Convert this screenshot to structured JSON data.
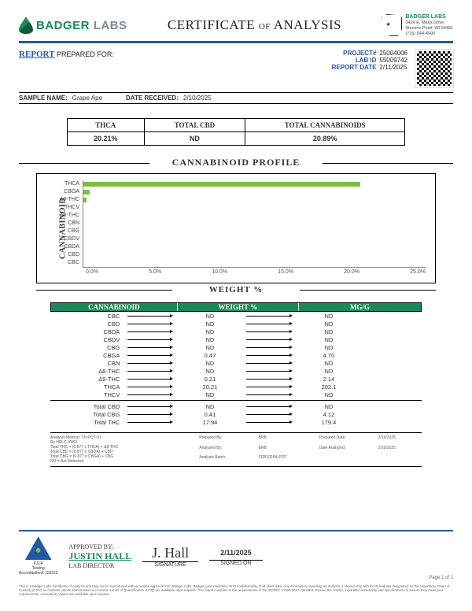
{
  "brand": {
    "name1": "BADGER",
    "name2": "LABS",
    "addr_name": "BADGER LABS",
    "addr1": "3426 E. Maria Drive",
    "addr2": "Stevens Point, WI 54481",
    "addr3": "(715) 544-4900"
  },
  "title": {
    "cert": "CERTIFICATE",
    "of": "OF",
    "analysis": "ANALYSIS"
  },
  "report": {
    "label": "REPORT",
    "prepared": "PREPARED FOR:"
  },
  "meta": {
    "project_k": "PROJECT#",
    "project_v": "25004006",
    "labid_k": "LAB ID",
    "labid_v": "55009742",
    "date_k": "REPORT DATE",
    "date_v": "2/11/2025"
  },
  "sample": {
    "name_k": "SAMPLE NAME:",
    "name_v": "Grape Ape",
    "recv_k": "DATE RECEIVED:",
    "recv_v": "2/10/2025"
  },
  "summary": {
    "h1": "THCA",
    "h2": "TOTAL CBD",
    "h3": "TOTAL CANNABINOIDS",
    "v1": "20.21%",
    "v2": "ND",
    "v3": "20.89%"
  },
  "profile": {
    "title": "CANNABINOID PROFILE",
    "ylab": "CANNABINOID",
    "xlab": "WEIGHT %"
  },
  "chart": {
    "xmax": 25.0,
    "ticks": [
      "0.0%",
      "5.0%",
      "10.0%",
      "15.0%",
      "20.0%",
      "25.0%"
    ],
    "bar_color": "#7bbf3f",
    "rows": [
      {
        "label": "THCA",
        "value": 20.21
      },
      {
        "label": "CBGA",
        "value": 0.47
      },
      {
        "label": "Δ9-THC",
        "value": 0.21
      },
      {
        "label": "THCV",
        "value": 0
      },
      {
        "label": "Δ8-THC",
        "value": 0
      },
      {
        "label": "CBN",
        "value": 0
      },
      {
        "label": "CBG",
        "value": 0
      },
      {
        "label": "CBDV",
        "value": 0
      },
      {
        "label": "CBDA",
        "value": 0
      },
      {
        "label": "CBD",
        "value": 0
      },
      {
        "label": "CBC",
        "value": 0
      }
    ]
  },
  "table": {
    "h1": "CANNABINOID",
    "h2": "WEIGHT %",
    "h3": "MG/G",
    "rows": [
      {
        "n": "CBC",
        "w": "ND",
        "m": "ND"
      },
      {
        "n": "CBD",
        "w": "ND",
        "m": "ND"
      },
      {
        "n": "CBDA",
        "w": "ND",
        "m": "ND"
      },
      {
        "n": "CBDV",
        "w": "ND",
        "m": "ND"
      },
      {
        "n": "CBG",
        "w": "ND",
        "m": "ND"
      },
      {
        "n": "CBGA",
        "w": "0.47",
        "m": "4.70"
      },
      {
        "n": "CBN",
        "w": "ND",
        "m": "ND"
      },
      {
        "n": "Δ8-THC",
        "w": "ND",
        "m": "ND"
      },
      {
        "n": "Δ9-THC",
        "w": "0.21",
        "m": "2.14"
      },
      {
        "n": "THCA",
        "w": "20.21",
        "m": "202.1"
      },
      {
        "n": "THCV",
        "w": "ND",
        "m": "ND"
      }
    ],
    "totals": [
      {
        "n": "Total CBD",
        "w": "ND",
        "m": "ND"
      },
      {
        "n": "Total CBG",
        "w": "0.41",
        "m": "4.12"
      },
      {
        "n": "Total THC",
        "w": "17.94",
        "m": "179.4"
      }
    ]
  },
  "method": {
    "l1": "Analysis Method: TP-POT-01",
    "l2": "By HPLC-VWD",
    "l3": "Total THC = (0.877 x THCA) + Δ9-THC",
    "l4": "Total CBD = (0.877 x CBDA) + CBD",
    "l5": "Total CBG = (0.877 x CBGA) + CBG",
    "l6": "ND = Not Detected",
    "r1k": "Prepared By:",
    "r1v": "BRB",
    "r2k": "Prepared Date:",
    "r2v": "2/10/2025",
    "r3k": "Analyzed By:",
    "r3v": "BRB",
    "r4k": "Date Analyzed:",
    "r4v": "2/10/2025",
    "r5k": "Analysis Batch:",
    "r5v": "FEB1025A-POT"
  },
  "approval": {
    "approved_by": "APPROVED BY:",
    "name": "JUSTIN HALL",
    "role": "LAB DIRECTOR",
    "sig_label": "SIGNATURE",
    "signed_label": "SIGNED ON",
    "signed_v": "2/11/2025",
    "pjla1": "PJLA",
    "pjla2": "Testing",
    "pjla3": "Accreditation# 118323"
  },
  "fine": "This is a Badger Labs Certificate of Analysis and may not be reproduced without written approval from Badger Labs. Badger Labs maintains strict confidentiality of all client data. Any information regarding an analysis is shared only with the individuals designated on the Laboratory Chain of Custody (COC) as contacts unless authorization is received. Limits of Quantification (LOQ) are available upon request. This report complies to the requirements of the ISO/IEC 17025:2017 standard. Review the results, expanded uncertainty and specifications to ensure they meet your requirements. Uncertainty values are available upon request.",
  "page": "Page 1 of 1"
}
